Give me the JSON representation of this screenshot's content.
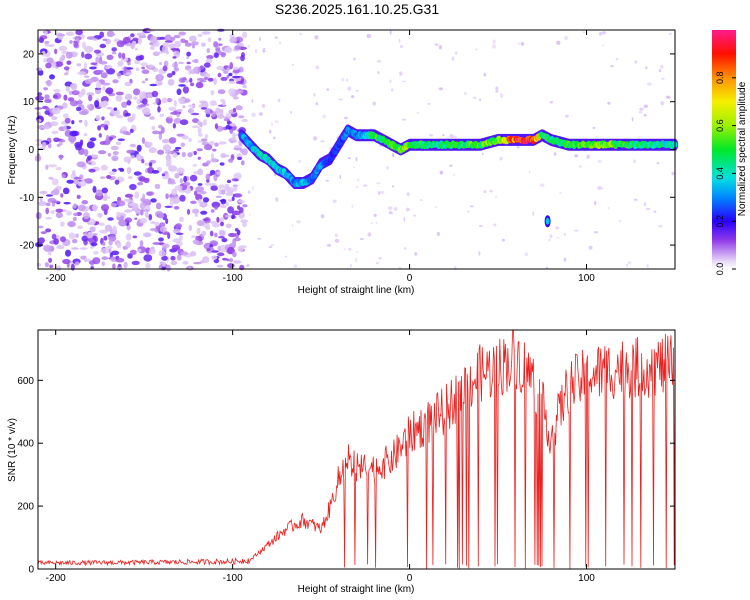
{
  "title": "S236.2025.161.10.25.G31",
  "chart_data": [
    {
      "type": "heatmap",
      "xlabel": "Height of straight line (km)",
      "ylabel": "Frequency (Hz)",
      "xlim": [
        -210,
        150
      ],
      "ylim": [
        -25,
        25
      ],
      "x_ticks": [
        -200,
        -100,
        0,
        100
      ],
      "y_ticks": [
        -20,
        -10,
        0,
        10,
        20
      ],
      "grid": false,
      "colorbar": {
        "label": "Normalized spectral amplitude",
        "range": [
          0,
          1
        ],
        "ticks": [
          0.0,
          0.2,
          0.4,
          0.6,
          0.8
        ]
      },
      "ridge": {
        "description_points_x": [
          -95,
          -90,
          -85,
          -80,
          -75,
          -70,
          -65,
          -60,
          -55,
          -50,
          -45,
          -40,
          -35,
          -30,
          -25,
          -20,
          -15,
          -10,
          -5,
          0,
          10,
          20,
          30,
          40,
          50,
          60,
          70,
          75,
          80,
          90,
          100,
          110,
          120,
          130,
          140,
          150
        ],
        "freq": [
          3,
          1,
          -1,
          -2,
          -4,
          -5,
          -7,
          -7,
          -6,
          -3,
          -2,
          1,
          4,
          3,
          3,
          3,
          2,
          1,
          0,
          1,
          1,
          1,
          1,
          1,
          2,
          2,
          2,
          3,
          2,
          1,
          1,
          1,
          1,
          1,
          1,
          1
        ],
        "amplitude": [
          0.3,
          0.35,
          0.4,
          0.4,
          0.35,
          0.35,
          0.3,
          0.35,
          0.3,
          0.3,
          0.25,
          0.25,
          0.3,
          0.3,
          0.35,
          0.55,
          0.45,
          0.5,
          0.55,
          0.55,
          0.45,
          0.45,
          0.5,
          0.55,
          0.55,
          0.95,
          0.9,
          0.5,
          0.45,
          0.5,
          0.55,
          0.6,
          0.5,
          0.45,
          0.45,
          0.4
        ]
      }
    },
    {
      "type": "line",
      "xlabel": "Height of straight line (km)",
      "ylabel": "SNR (10 * v/v)",
      "xlim": [
        -210,
        150
      ],
      "ylim": [
        0,
        760
      ],
      "x_ticks": [
        -200,
        -100,
        0,
        100
      ],
      "y_ticks": [
        0,
        200,
        400,
        600
      ],
      "color": "#e8201e",
      "envelope": {
        "x": [
          -210,
          -150,
          -100,
          -90,
          -80,
          -70,
          -60,
          -50,
          -45,
          -40,
          -35,
          -30,
          -20,
          -10,
          0,
          10,
          20,
          30,
          40,
          50,
          60,
          70,
          75,
          80,
          85,
          90,
          100,
          110,
          120,
          130,
          140,
          150
        ],
        "y": [
          20,
          22,
          25,
          30,
          80,
          130,
          160,
          130,
          200,
          300,
          360,
          330,
          330,
          360,
          440,
          480,
          520,
          590,
          640,
          660,
          700,
          620,
          540,
          430,
          520,
          600,
          630,
          650,
          660,
          660,
          665,
          670
        ]
      },
      "dropouts_from_x": -40
    }
  ]
}
